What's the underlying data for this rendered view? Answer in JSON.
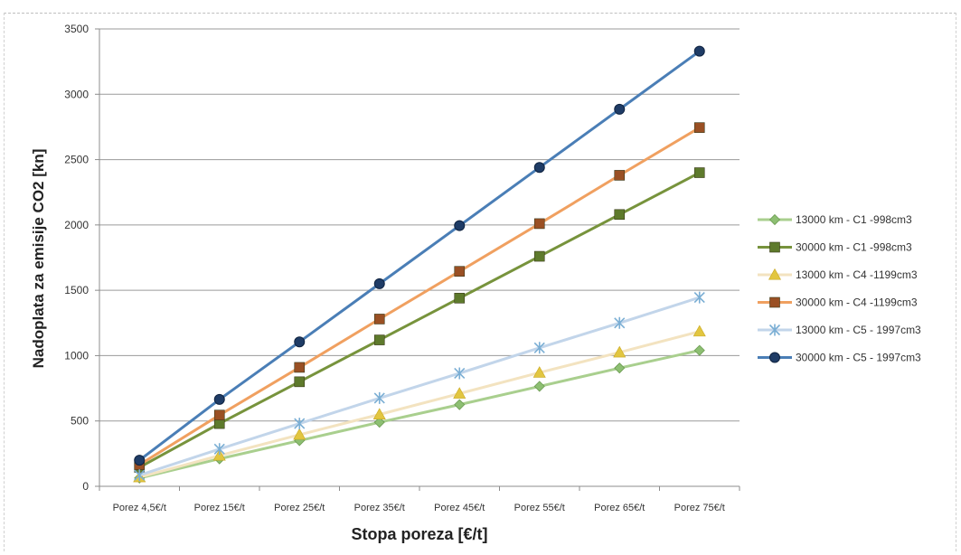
{
  "chart_data": {
    "type": "line",
    "title": "",
    "xlabel": "Stopa poreza [€/t]",
    "ylabel": "Nadoplata za emisije CO2 [kn]",
    "ylim": [
      0,
      3500
    ],
    "yticks": [
      0,
      500,
      1000,
      1500,
      2000,
      2500,
      3000,
      3500
    ],
    "grid": "horizontal",
    "legend_position": "right",
    "categories": [
      "Porez 4,5€/t",
      "Porez 15€/t",
      "Porez 25€/t",
      "Porez 35€/t",
      "Porez 45€/t",
      "Porez 55€/t",
      "Porez 65€/t",
      "Porez 75€/t"
    ],
    "series": [
      {
        "name": "13000 km - C1 -998cm3",
        "color": "#a9cf8e",
        "marker": "diamond",
        "marker_color": "#8dbf72",
        "values": [
          63,
          210,
          350,
          490,
          625,
          765,
          905,
          1040
        ]
      },
      {
        "name": "30000 km - C1 -998cm3",
        "color": "#77933c",
        "marker": "square",
        "marker_color": "#5e7a2c",
        "values": [
          145,
          480,
          800,
          1120,
          1440,
          1760,
          2080,
          2400
        ]
      },
      {
        "name": "13000 km - C4 -1199cm3",
        "color": "#f3e3c0",
        "marker": "triangle",
        "marker_color": "#e2c640",
        "values": [
          70,
          235,
          395,
          550,
          710,
          870,
          1025,
          1185
        ]
      },
      {
        "name": "30000 km - C4 -1199cm3",
        "color": "#f0a060",
        "marker": "square",
        "marker_color": "#9a5024",
        "values": [
          165,
          545,
          910,
          1280,
          1645,
          2010,
          2380,
          2745
        ]
      },
      {
        "name": "13000 km - C5 - 1997cm3",
        "color": "#c2d5ea",
        "marker": "star",
        "marker_color": "#7aaed4",
        "values": [
          85,
          285,
          480,
          675,
          865,
          1060,
          1250,
          1445
        ]
      },
      {
        "name": "30000 km - C5 - 1997cm3",
        "color": "#4a7eb6",
        "marker": "circle",
        "marker_color": "#1f3c66",
        "values": [
          200,
          665,
          1105,
          1550,
          1995,
          2440,
          2885,
          3330
        ]
      }
    ]
  }
}
